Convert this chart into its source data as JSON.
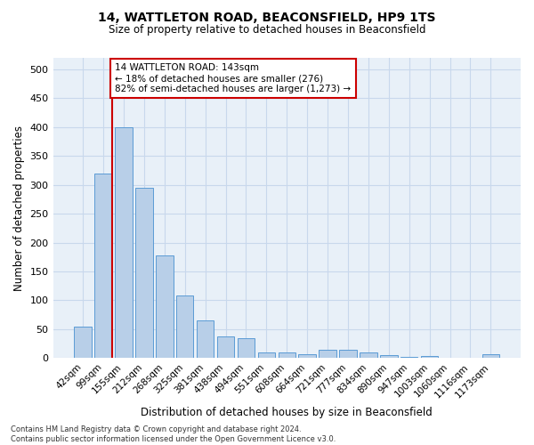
{
  "title1": "14, WATTLETON ROAD, BEACONSFIELD, HP9 1TS",
  "title2": "Size of property relative to detached houses in Beaconsfield",
  "xlabel": "Distribution of detached houses by size in Beaconsfield",
  "ylabel": "Number of detached properties",
  "categories": [
    "42sqm",
    "99sqm",
    "155sqm",
    "212sqm",
    "268sqm",
    "325sqm",
    "381sqm",
    "438sqm",
    "494sqm",
    "551sqm",
    "608sqm",
    "664sqm",
    "721sqm",
    "777sqm",
    "834sqm",
    "890sqm",
    "947sqm",
    "1003sqm",
    "1060sqm",
    "1116sqm",
    "1173sqm"
  ],
  "values": [
    55,
    320,
    400,
    295,
    178,
    108,
    65,
    38,
    35,
    10,
    10,
    6,
    15,
    14,
    9,
    5,
    2,
    4,
    1,
    1,
    6
  ],
  "bar_color": "#b8cfe8",
  "bar_edge_color": "#5b9bd5",
  "vline_color": "#cc0000",
  "annotation_text": "14 WATTLETON ROAD: 143sqm\n← 18% of detached houses are smaller (276)\n82% of semi-detached houses are larger (1,273) →",
  "annotation_box_color": "#ffffff",
  "annotation_box_edge": "#cc0000",
  "ylim": [
    0,
    520
  ],
  "yticks": [
    0,
    50,
    100,
    150,
    200,
    250,
    300,
    350,
    400,
    450,
    500
  ],
  "grid_color": "#c8d8ec",
  "background_color": "#e8f0f8",
  "footer1": "Contains HM Land Registry data © Crown copyright and database right 2024.",
  "footer2": "Contains public sector information licensed under the Open Government Licence v3.0."
}
